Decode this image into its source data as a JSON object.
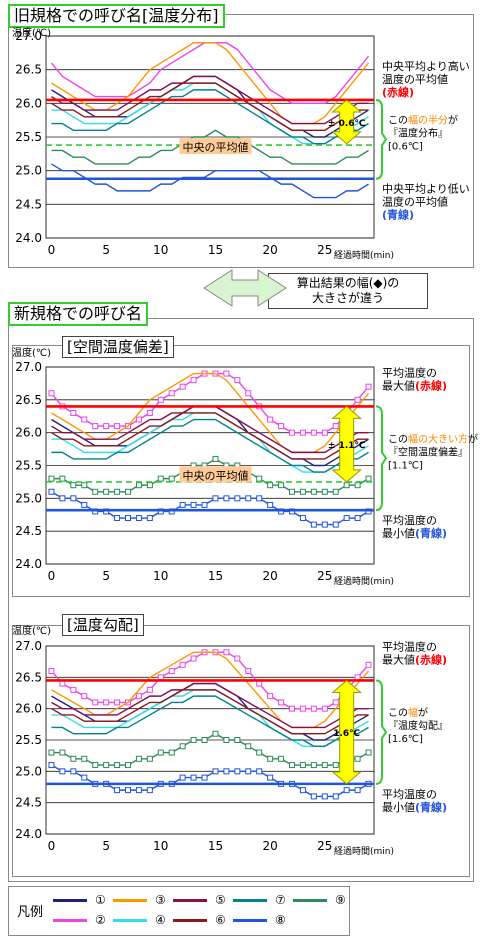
{
  "titles": {
    "old": "旧規格での呼び名[温度分布]",
    "new": "新規格での呼び名",
    "sub1": "[空間温度偏差]",
    "sub2": "[温度勾配]"
  },
  "arrow_note": {
    "line1": "算出結果の幅(◆)の",
    "line2": "大きさが違う"
  },
  "axis": {
    "ylabel": "温度(℃)",
    "xlabel": "経過時間(min)"
  },
  "legend": {
    "title": "凡例",
    "items": [
      {
        "label": "①",
        "color": "#1a237e"
      },
      {
        "label": "③",
        "color": "#ff9800"
      },
      {
        "label": "⑤",
        "color": "#880e4f"
      },
      {
        "label": "⑦",
        "color": "#00838f"
      },
      {
        "label": "⑨",
        "color": "#2e8b57"
      },
      {
        "label": "②",
        "color": "#ee44ee"
      },
      {
        "label": "④",
        "color": "#33ddee"
      },
      {
        "label": "⑥",
        "color": "#8b1a1a"
      },
      {
        "label": "⑧",
        "color": "#2255dd"
      }
    ]
  },
  "chart_data": [
    {
      "type": "line",
      "panel": "old",
      "xlim": [
        -0.5,
        29.5
      ],
      "ylim": [
        24.0,
        27.0
      ],
      "xticks": [
        0,
        5,
        10,
        15,
        20,
        25
      ],
      "yticks": [
        24.0,
        24.5,
        25.0,
        25.5,
        26.0,
        26.5,
        27.0
      ],
      "x": [
        0,
        1,
        2,
        3,
        4,
        5,
        6,
        7,
        8,
        9,
        10,
        11,
        12,
        13,
        14,
        15,
        16,
        17,
        18,
        19,
        20,
        21,
        22,
        23,
        24,
        25,
        26,
        27,
        28,
        29
      ],
      "series": [
        {
          "name": "①",
          "color": "#1a237e",
          "values": [
            26.2,
            26.1,
            26.0,
            25.9,
            25.8,
            25.8,
            25.8,
            25.8,
            25.9,
            26.0,
            26.1,
            26.2,
            26.3,
            26.4,
            26.4,
            26.4,
            26.3,
            26.2,
            26.0,
            25.9,
            25.8,
            25.7,
            25.6,
            25.6,
            25.5,
            25.5,
            25.6,
            25.7,
            25.8,
            25.9
          ]
        },
        {
          "name": "②",
          "color": "#ee44ee",
          "values": [
            26.6,
            26.4,
            26.3,
            26.2,
            26.1,
            26.1,
            26.1,
            26.1,
            26.2,
            26.3,
            26.5,
            26.6,
            26.7,
            26.8,
            26.9,
            26.9,
            26.9,
            26.8,
            26.6,
            26.4,
            26.2,
            26.1,
            26.0,
            26.0,
            26.0,
            26.0,
            26.1,
            26.3,
            26.5,
            26.7
          ]
        },
        {
          "name": "③",
          "color": "#ff9800",
          "values": [
            26.3,
            26.2,
            26.1,
            26.0,
            25.9,
            25.9,
            26.0,
            26.1,
            26.3,
            26.5,
            26.6,
            26.7,
            26.8,
            26.9,
            26.9,
            26.9,
            26.8,
            26.6,
            26.4,
            26.2,
            26.0,
            25.8,
            25.7,
            25.7,
            25.7,
            25.8,
            26.0,
            26.2,
            26.4,
            26.6
          ]
        },
        {
          "name": "④",
          "color": "#33ddee",
          "values": [
            25.9,
            25.9,
            25.8,
            25.7,
            25.7,
            25.7,
            25.7,
            25.8,
            25.9,
            26.0,
            26.1,
            26.2,
            26.2,
            26.3,
            26.3,
            26.3,
            26.2,
            26.1,
            26.0,
            25.9,
            25.7,
            25.6,
            25.5,
            25.4,
            25.4,
            25.4,
            25.5,
            25.6,
            25.7,
            25.8
          ]
        },
        {
          "name": "⑤",
          "color": "#880e4f",
          "values": [
            26.1,
            26.0,
            26.0,
            25.9,
            25.9,
            25.9,
            25.9,
            26.0,
            26.1,
            26.2,
            26.2,
            26.3,
            26.3,
            26.4,
            26.4,
            26.4,
            26.3,
            26.2,
            26.1,
            26.0,
            25.9,
            25.8,
            25.7,
            25.7,
            25.7,
            25.7,
            25.8,
            25.9,
            26.0,
            26.0
          ]
        },
        {
          "name": "⑥",
          "color": "#8b1a1a",
          "values": [
            26.0,
            25.9,
            25.9,
            25.8,
            25.8,
            25.8,
            25.8,
            25.9,
            26.0,
            26.1,
            26.1,
            26.2,
            26.3,
            26.3,
            26.3,
            26.3,
            26.2,
            26.1,
            26.0,
            25.9,
            25.8,
            25.7,
            25.6,
            25.6,
            25.6,
            25.6,
            25.7,
            25.8,
            25.9,
            25.9
          ]
        },
        {
          "name": "⑦",
          "color": "#00838f",
          "values": [
            25.7,
            25.7,
            25.6,
            25.6,
            25.6,
            25.6,
            25.7,
            25.7,
            25.8,
            25.9,
            26.0,
            26.1,
            26.1,
            26.2,
            26.2,
            26.2,
            26.1,
            26.0,
            25.9,
            25.8,
            25.7,
            25.6,
            25.5,
            25.5,
            25.4,
            25.4,
            25.5,
            25.6,
            25.6,
            25.7
          ]
        },
        {
          "name": "⑧",
          "color": "#2255dd",
          "values": [
            25.1,
            25.0,
            25.0,
            24.9,
            24.8,
            24.8,
            24.7,
            24.7,
            24.7,
            24.7,
            24.8,
            24.8,
            24.9,
            24.9,
            24.9,
            25.0,
            25.0,
            25.0,
            25.0,
            25.0,
            24.9,
            24.8,
            24.8,
            24.7,
            24.6,
            24.6,
            24.6,
            24.7,
            24.7,
            24.8
          ]
        },
        {
          "name": "⑨",
          "color": "#2e8b57",
          "values": [
            25.3,
            25.3,
            25.2,
            25.2,
            25.1,
            25.1,
            25.1,
            25.1,
            25.2,
            25.2,
            25.3,
            25.3,
            25.4,
            25.5,
            25.5,
            25.6,
            25.5,
            25.5,
            25.4,
            25.3,
            25.2,
            25.2,
            25.1,
            25.1,
            25.1,
            25.1,
            25.1,
            25.2,
            25.2,
            25.3
          ]
        }
      ],
      "hlines": [
        {
          "label": "red",
          "value": 26.05,
          "color": "#ff0000"
        },
        {
          "label": "blue",
          "value": 24.88,
          "color": "#2255dd"
        },
        {
          "label": "center",
          "value": 25.38,
          "color": "#33cc33",
          "dashed": true
        }
      ],
      "markers": false,
      "center_label": "中央の平均値",
      "arrow": {
        "x": 27,
        "from": 25.4,
        "to": 26.05,
        "label": "± 0.6℃"
      },
      "annotations": [
        {
          "lines": [
            "中央平均より高い",
            "温度の平均値",
            "(赤線)"
          ],
          "colors": [
            "#000",
            "#000",
            "#ff0000"
          ]
        },
        {
          "lines": [
            "この幅の半分が",
            "『温度分布』",
            "[0.6℃]"
          ],
          "colors": [
            "#000",
            "#000",
            "#000"
          ],
          "highlight": "幅の半分"
        },
        {
          "lines": [
            "中央平均より低い",
            "温度の平均値",
            "(青線)"
          ],
          "colors": [
            "#000",
            "#000",
            "#2255dd"
          ]
        }
      ]
    },
    {
      "type": "line",
      "panel": "sub1",
      "xlim": [
        -0.5,
        29.5
      ],
      "ylim": [
        24.0,
        27.0
      ],
      "xticks": [
        0,
        5,
        10,
        15,
        20,
        25
      ],
      "yticks": [
        24.0,
        24.5,
        25.0,
        25.5,
        26.0,
        26.5,
        27.0
      ],
      "markers": true,
      "hlines": [
        {
          "label": "red",
          "value": 26.4,
          "color": "#ff0000"
        },
        {
          "label": "blue",
          "value": 24.82,
          "color": "#2255dd"
        },
        {
          "label": "center",
          "value": 25.25,
          "color": "#33cc33",
          "dashed": true
        }
      ],
      "center_label": "中央の平均値",
      "arrow": {
        "x": 27,
        "from": 25.25,
        "to": 26.4,
        "label": "± 1.1℃"
      },
      "annotations": [
        {
          "lines": [
            "平均温度の",
            "最大値(赤線)"
          ],
          "colors": [
            "#000",
            "#ff0000"
          ]
        },
        {
          "lines": [
            "この幅の大きい方が",
            "『空間温度偏差』",
            "[1.1℃]"
          ],
          "colors": [
            "#000",
            "#000",
            "#000"
          ],
          "highlight": "幅の大きい方"
        },
        {
          "lines": [
            "平均温度の",
            "最小値(青線)"
          ],
          "colors": [
            "#000",
            "#2255dd"
          ]
        }
      ]
    },
    {
      "type": "line",
      "panel": "sub2",
      "xlim": [
        -0.5,
        29.5
      ],
      "ylim": [
        24.0,
        27.0
      ],
      "xticks": [
        0,
        5,
        10,
        15,
        20,
        25
      ],
      "yticks": [
        24.0,
        24.5,
        25.0,
        25.5,
        26.0,
        26.5,
        27.0
      ],
      "markers": true,
      "hlines": [
        {
          "label": "red",
          "value": 26.45,
          "color": "#ff0000"
        },
        {
          "label": "blue",
          "value": 24.8,
          "color": "#2255dd"
        }
      ],
      "arrow": {
        "x": 27,
        "from": 24.8,
        "to": 26.45,
        "label": "1.6℃"
      },
      "annotations": [
        {
          "lines": [
            "平均温度の",
            "最大値(赤線)"
          ],
          "colors": [
            "#000",
            "#ff0000"
          ]
        },
        {
          "lines": [
            "この幅が",
            "『温度勾配』",
            "[1.6℃]"
          ],
          "colors": [
            "#000",
            "#000",
            "#000"
          ],
          "highlight": "幅"
        },
        {
          "lines": [
            "平均温度の",
            "最小値(青線)"
          ],
          "colors": [
            "#000",
            "#2255dd"
          ]
        }
      ]
    }
  ]
}
